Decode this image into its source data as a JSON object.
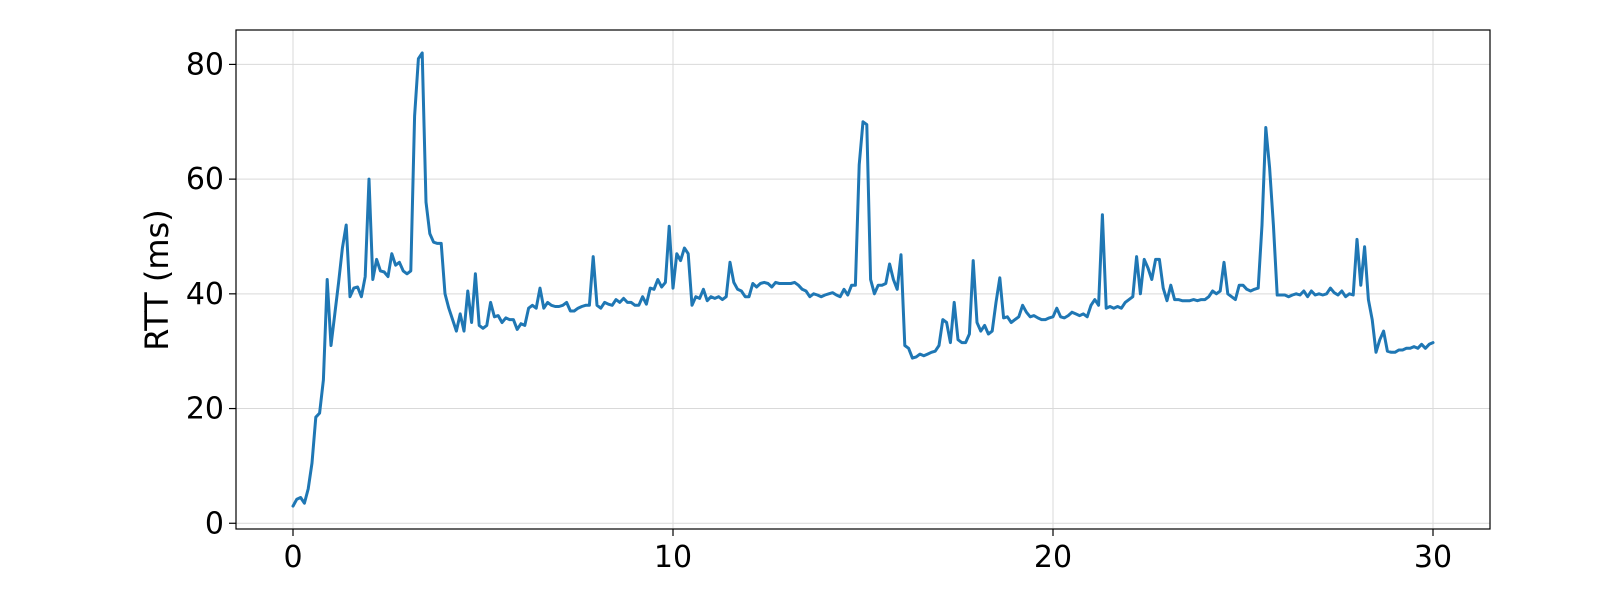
{
  "chart_data": {
    "type": "line",
    "title": "",
    "xlabel": "",
    "ylabel": "RTT (ms)",
    "xlim": [
      -1.5,
      31.5
    ],
    "ylim": [
      -1,
      86
    ],
    "xticks": [
      0,
      10,
      20,
      30
    ],
    "yticks": [
      0,
      20,
      40,
      60,
      80
    ],
    "xtick_labels": [
      "0",
      "10",
      "20",
      "30"
    ],
    "ytick_labels": [
      "0",
      "20",
      "40",
      "60",
      "80"
    ],
    "grid": true,
    "legend": "none",
    "series": [
      {
        "name": "",
        "color": "#1f77b4",
        "points": [
          [
            0.0,
            3.0
          ],
          [
            0.1,
            4.2
          ],
          [
            0.2,
            4.5
          ],
          [
            0.3,
            3.5
          ],
          [
            0.4,
            6.0
          ],
          [
            0.5,
            10.5
          ],
          [
            0.6,
            18.5
          ],
          [
            0.7,
            19.2
          ],
          [
            0.8,
            25.0
          ],
          [
            0.9,
            42.5
          ],
          [
            1.0,
            31.0
          ],
          [
            1.1,
            36.5
          ],
          [
            1.2,
            42.0
          ],
          [
            1.3,
            48.0
          ],
          [
            1.4,
            52.0
          ],
          [
            1.5,
            39.5
          ],
          [
            1.6,
            41.0
          ],
          [
            1.7,
            41.2
          ],
          [
            1.8,
            39.5
          ],
          [
            1.9,
            43.0
          ],
          [
            2.0,
            60.0
          ],
          [
            2.1,
            42.5
          ],
          [
            2.2,
            46.0
          ],
          [
            2.3,
            44.0
          ],
          [
            2.4,
            43.8
          ],
          [
            2.5,
            43.0
          ],
          [
            2.6,
            47.0
          ],
          [
            2.7,
            45.0
          ],
          [
            2.8,
            45.5
          ],
          [
            2.9,
            44.0
          ],
          [
            3.0,
            43.5
          ],
          [
            3.1,
            44.0
          ],
          [
            3.2,
            71.0
          ],
          [
            3.3,
            81.0
          ],
          [
            3.4,
            82.0
          ],
          [
            3.5,
            56.0
          ],
          [
            3.6,
            50.5
          ],
          [
            3.7,
            49.0
          ],
          [
            3.8,
            48.8
          ],
          [
            3.9,
            48.8
          ],
          [
            4.0,
            40.0
          ],
          [
            4.1,
            37.5
          ],
          [
            4.2,
            35.5
          ],
          [
            4.3,
            33.5
          ],
          [
            4.4,
            36.5
          ],
          [
            4.5,
            33.5
          ],
          [
            4.6,
            40.5
          ],
          [
            4.7,
            35.0
          ],
          [
            4.8,
            43.5
          ],
          [
            4.9,
            34.5
          ],
          [
            5.0,
            34.0
          ],
          [
            5.1,
            34.5
          ],
          [
            5.2,
            38.5
          ],
          [
            5.3,
            36.0
          ],
          [
            5.4,
            36.2
          ],
          [
            5.5,
            35.0
          ],
          [
            5.6,
            35.8
          ],
          [
            5.7,
            35.5
          ],
          [
            5.8,
            35.5
          ],
          [
            5.9,
            33.8
          ],
          [
            6.0,
            34.8
          ],
          [
            6.1,
            34.5
          ],
          [
            6.2,
            37.5
          ],
          [
            6.3,
            38.0
          ],
          [
            6.4,
            37.5
          ],
          [
            6.5,
            41.0
          ],
          [
            6.6,
            37.5
          ],
          [
            6.7,
            38.5
          ],
          [
            6.8,
            38.0
          ],
          [
            6.9,
            37.8
          ],
          [
            7.0,
            37.8
          ],
          [
            7.1,
            38.0
          ],
          [
            7.2,
            38.5
          ],
          [
            7.3,
            37.0
          ],
          [
            7.4,
            37.0
          ],
          [
            7.5,
            37.5
          ],
          [
            7.6,
            37.8
          ],
          [
            7.7,
            38.0
          ],
          [
            7.8,
            38.0
          ],
          [
            7.9,
            46.5
          ],
          [
            8.0,
            38.0
          ],
          [
            8.1,
            37.5
          ],
          [
            8.2,
            38.5
          ],
          [
            8.3,
            38.2
          ],
          [
            8.4,
            38.0
          ],
          [
            8.5,
            39.0
          ],
          [
            8.6,
            38.5
          ],
          [
            8.7,
            39.2
          ],
          [
            8.8,
            38.5
          ],
          [
            8.9,
            38.5
          ],
          [
            9.0,
            38.0
          ],
          [
            9.1,
            38.0
          ],
          [
            9.2,
            39.5
          ],
          [
            9.3,
            38.2
          ],
          [
            9.4,
            41.0
          ],
          [
            9.5,
            40.8
          ],
          [
            9.6,
            42.5
          ],
          [
            9.7,
            41.2
          ],
          [
            9.8,
            42.0
          ],
          [
            9.9,
            51.8
          ],
          [
            10.0,
            41.0
          ],
          [
            10.1,
            47.0
          ],
          [
            10.2,
            45.8
          ],
          [
            10.3,
            48.0
          ],
          [
            10.4,
            47.0
          ],
          [
            10.5,
            38.0
          ],
          [
            10.6,
            39.5
          ],
          [
            10.7,
            39.2
          ],
          [
            10.8,
            40.8
          ],
          [
            10.9,
            38.8
          ],
          [
            11.0,
            39.5
          ],
          [
            11.1,
            39.2
          ],
          [
            11.2,
            39.5
          ],
          [
            11.3,
            39.0
          ],
          [
            11.4,
            39.5
          ],
          [
            11.5,
            45.5
          ],
          [
            11.6,
            42.0
          ],
          [
            11.7,
            40.8
          ],
          [
            11.8,
            40.5
          ],
          [
            11.9,
            39.5
          ],
          [
            12.0,
            39.5
          ],
          [
            12.1,
            41.8
          ],
          [
            12.2,
            41.2
          ],
          [
            12.3,
            41.8
          ],
          [
            12.4,
            42.0
          ],
          [
            12.5,
            41.8
          ],
          [
            12.6,
            41.2
          ],
          [
            12.7,
            42.0
          ],
          [
            12.8,
            41.8
          ],
          [
            12.9,
            41.8
          ],
          [
            13.0,
            41.8
          ],
          [
            13.1,
            41.8
          ],
          [
            13.2,
            42.0
          ],
          [
            13.3,
            41.5
          ],
          [
            13.4,
            40.8
          ],
          [
            13.5,
            40.5
          ],
          [
            13.6,
            39.5
          ],
          [
            13.7,
            40.0
          ],
          [
            13.8,
            39.8
          ],
          [
            13.9,
            39.5
          ],
          [
            14.0,
            39.8
          ],
          [
            14.1,
            40.0
          ],
          [
            14.2,
            40.2
          ],
          [
            14.3,
            39.8
          ],
          [
            14.4,
            39.5
          ],
          [
            14.5,
            40.8
          ],
          [
            14.6,
            39.8
          ],
          [
            14.7,
            41.5
          ],
          [
            14.8,
            41.5
          ],
          [
            14.9,
            62.5
          ],
          [
            15.0,
            70.0
          ],
          [
            15.1,
            69.5
          ],
          [
            15.2,
            42.5
          ],
          [
            15.3,
            40.0
          ],
          [
            15.4,
            41.5
          ],
          [
            15.5,
            41.5
          ],
          [
            15.6,
            41.8
          ],
          [
            15.7,
            45.2
          ],
          [
            15.8,
            42.5
          ],
          [
            15.9,
            40.8
          ],
          [
            16.0,
            46.8
          ],
          [
            16.1,
            31.0
          ],
          [
            16.2,
            30.5
          ],
          [
            16.3,
            28.8
          ],
          [
            16.4,
            29.0
          ],
          [
            16.5,
            29.5
          ],
          [
            16.6,
            29.2
          ],
          [
            16.7,
            29.5
          ],
          [
            16.8,
            29.8
          ],
          [
            16.9,
            30.0
          ],
          [
            17.0,
            31.0
          ],
          [
            17.1,
            35.5
          ],
          [
            17.2,
            35.0
          ],
          [
            17.3,
            31.5
          ],
          [
            17.4,
            38.5
          ],
          [
            17.5,
            32.0
          ],
          [
            17.6,
            31.5
          ],
          [
            17.7,
            31.5
          ],
          [
            17.8,
            33.0
          ],
          [
            17.9,
            45.8
          ],
          [
            18.0,
            35.0
          ],
          [
            18.1,
            33.5
          ],
          [
            18.2,
            34.5
          ],
          [
            18.3,
            33.0
          ],
          [
            18.4,
            33.5
          ],
          [
            18.5,
            38.5
          ],
          [
            18.6,
            42.8
          ],
          [
            18.7,
            35.8
          ],
          [
            18.8,
            36.0
          ],
          [
            18.9,
            35.0
          ],
          [
            19.0,
            35.5
          ],
          [
            19.1,
            36.0
          ],
          [
            19.2,
            38.0
          ],
          [
            19.3,
            36.8
          ],
          [
            19.4,
            36.0
          ],
          [
            19.5,
            36.2
          ],
          [
            19.6,
            35.8
          ],
          [
            19.7,
            35.5
          ],
          [
            19.8,
            35.5
          ],
          [
            19.9,
            35.8
          ],
          [
            20.0,
            36.0
          ],
          [
            20.1,
            37.5
          ],
          [
            20.2,
            36.0
          ],
          [
            20.3,
            35.8
          ],
          [
            20.4,
            36.2
          ],
          [
            20.5,
            36.8
          ],
          [
            20.6,
            36.5
          ],
          [
            20.7,
            36.2
          ],
          [
            20.8,
            36.5
          ],
          [
            20.9,
            36.0
          ],
          [
            21.0,
            38.0
          ],
          [
            21.1,
            39.0
          ],
          [
            21.2,
            38.0
          ],
          [
            21.3,
            53.8
          ],
          [
            21.4,
            37.5
          ],
          [
            21.5,
            37.8
          ],
          [
            21.6,
            37.5
          ],
          [
            21.7,
            37.8
          ],
          [
            21.8,
            37.5
          ],
          [
            21.9,
            38.5
          ],
          [
            22.0,
            39.0
          ],
          [
            22.1,
            39.5
          ],
          [
            22.2,
            46.5
          ],
          [
            22.3,
            40.0
          ],
          [
            22.4,
            46.0
          ],
          [
            22.5,
            44.5
          ],
          [
            22.6,
            42.5
          ],
          [
            22.7,
            46.0
          ],
          [
            22.8,
            46.0
          ],
          [
            22.9,
            41.0
          ],
          [
            23.0,
            38.8
          ],
          [
            23.1,
            41.5
          ],
          [
            23.2,
            39.0
          ],
          [
            23.3,
            39.0
          ],
          [
            23.4,
            38.8
          ],
          [
            23.5,
            38.8
          ],
          [
            23.6,
            38.8
          ],
          [
            23.7,
            39.0
          ],
          [
            23.8,
            38.8
          ],
          [
            23.9,
            39.0
          ],
          [
            24.0,
            39.0
          ],
          [
            24.1,
            39.5
          ],
          [
            24.2,
            40.5
          ],
          [
            24.3,
            40.0
          ],
          [
            24.4,
            40.5
          ],
          [
            24.5,
            45.5
          ],
          [
            24.6,
            40.0
          ],
          [
            24.7,
            39.5
          ],
          [
            24.8,
            39.0
          ],
          [
            24.9,
            41.5
          ],
          [
            25.0,
            41.5
          ],
          [
            25.1,
            40.8
          ],
          [
            25.2,
            40.5
          ],
          [
            25.3,
            40.8
          ],
          [
            25.4,
            41.0
          ],
          [
            25.5,
            52.0
          ],
          [
            25.6,
            69.0
          ],
          [
            25.7,
            62.0
          ],
          [
            25.8,
            52.0
          ],
          [
            25.9,
            39.8
          ],
          [
            26.0,
            39.8
          ],
          [
            26.1,
            39.8
          ],
          [
            26.2,
            39.5
          ],
          [
            26.3,
            39.8
          ],
          [
            26.4,
            40.0
          ],
          [
            26.5,
            39.8
          ],
          [
            26.6,
            40.5
          ],
          [
            26.7,
            39.5
          ],
          [
            26.8,
            40.5
          ],
          [
            26.9,
            39.8
          ],
          [
            27.0,
            40.0
          ],
          [
            27.1,
            39.8
          ],
          [
            27.2,
            40.0
          ],
          [
            27.3,
            41.0
          ],
          [
            27.4,
            40.2
          ],
          [
            27.5,
            39.8
          ],
          [
            27.6,
            40.5
          ],
          [
            27.7,
            39.5
          ],
          [
            27.8,
            40.0
          ],
          [
            27.9,
            39.8
          ],
          [
            28.0,
            49.5
          ],
          [
            28.1,
            41.5
          ],
          [
            28.2,
            48.2
          ],
          [
            28.3,
            39.0
          ],
          [
            28.4,
            35.5
          ],
          [
            28.5,
            29.8
          ],
          [
            28.6,
            32.0
          ],
          [
            28.7,
            33.5
          ],
          [
            28.8,
            30.0
          ],
          [
            28.9,
            29.8
          ],
          [
            29.0,
            29.8
          ],
          [
            29.1,
            30.2
          ],
          [
            29.2,
            30.2
          ],
          [
            29.3,
            30.5
          ],
          [
            29.4,
            30.5
          ],
          [
            29.5,
            30.8
          ],
          [
            29.6,
            30.5
          ],
          [
            29.7,
            31.2
          ],
          [
            29.8,
            30.5
          ],
          [
            29.9,
            31.2
          ],
          [
            30.0,
            31.5
          ]
        ]
      }
    ]
  }
}
